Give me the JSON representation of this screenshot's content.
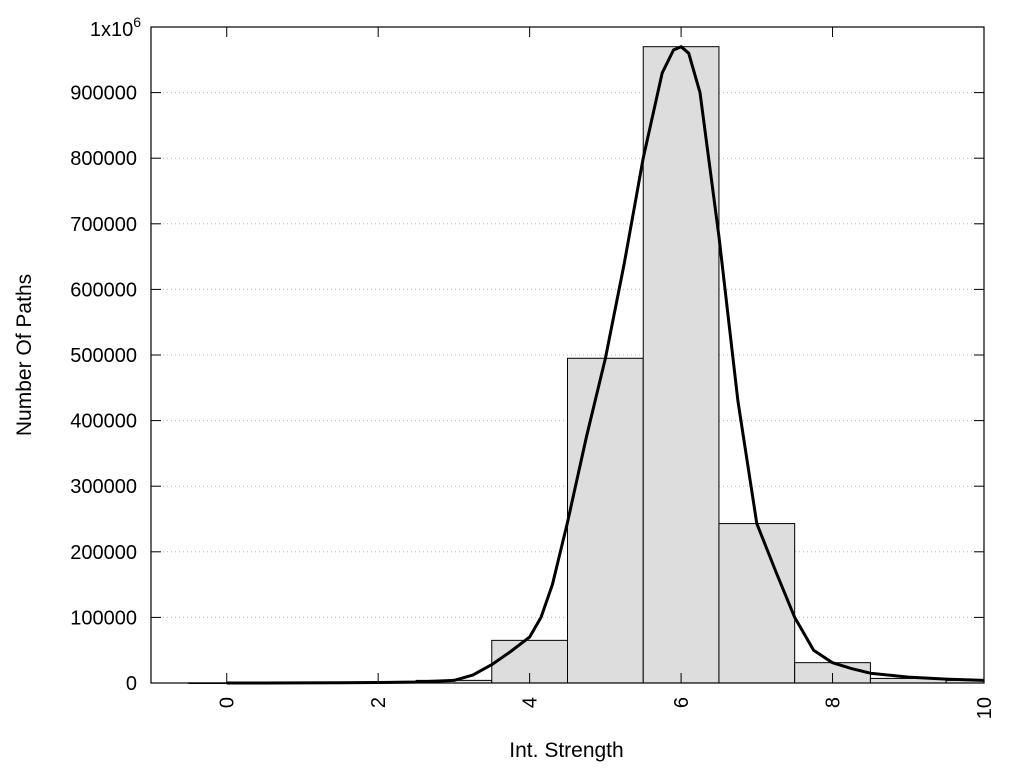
{
  "chart_data": {
    "type": "bar",
    "xlabel": "Int. Strength",
    "ylabel": "Number Of Paths",
    "ylim": [
      0,
      1000000
    ],
    "xlim": [
      -1,
      10
    ],
    "y_top_label": "1x10",
    "y_top_label_exponent": "6",
    "y_ticks": [
      0,
      100000,
      200000,
      300000,
      400000,
      500000,
      600000,
      700000,
      800000,
      900000
    ],
    "y_tick_labels": [
      "0",
      "100000",
      "200000",
      "300000",
      "400000",
      "500000",
      "600000",
      "700000",
      "800000",
      "900000"
    ],
    "x_ticks": [
      0,
      2,
      4,
      6,
      8,
      10
    ],
    "x_tick_labels": [
      "0",
      "2",
      "4",
      "6",
      "8",
      "10"
    ],
    "grid": "horizontal dotted",
    "bar_color": "#dddddd",
    "bars": [
      {
        "x": 0,
        "value": 200
      },
      {
        "x": 1,
        "value": 300
      },
      {
        "x": 2,
        "value": 800
      },
      {
        "x": 3,
        "value": 4000
      },
      {
        "x": 4,
        "value": 65000
      },
      {
        "x": 5,
        "value": 495000
      },
      {
        "x": 6,
        "value": 970000
      },
      {
        "x": 7,
        "value": 243000
      },
      {
        "x": 8,
        "value": 31000
      },
      {
        "x": 9,
        "value": 7000
      },
      {
        "x": 10,
        "value": 4000
      }
    ],
    "curve": {
      "x": [
        0,
        0.5,
        1,
        1.5,
        2,
        2.5,
        3,
        3.25,
        3.5,
        3.75,
        4,
        4.15,
        4.3,
        4.5,
        4.75,
        5,
        5.25,
        5.5,
        5.75,
        5.9,
        6,
        6.1,
        6.25,
        6.5,
        6.75,
        7,
        7.25,
        7.5,
        7.75,
        8,
        8.25,
        8.5,
        9,
        9.5,
        10
      ],
      "y": [
        0,
        0,
        200,
        500,
        800,
        1500,
        4000,
        12000,
        28000,
        48000,
        70000,
        100000,
        150000,
        245000,
        375000,
        495000,
        640000,
        800000,
        930000,
        965000,
        970000,
        960000,
        900000,
        680000,
        430000,
        243000,
        170000,
        100000,
        50000,
        31000,
        22000,
        15000,
        9000,
        6000,
        4000
      ]
    }
  }
}
